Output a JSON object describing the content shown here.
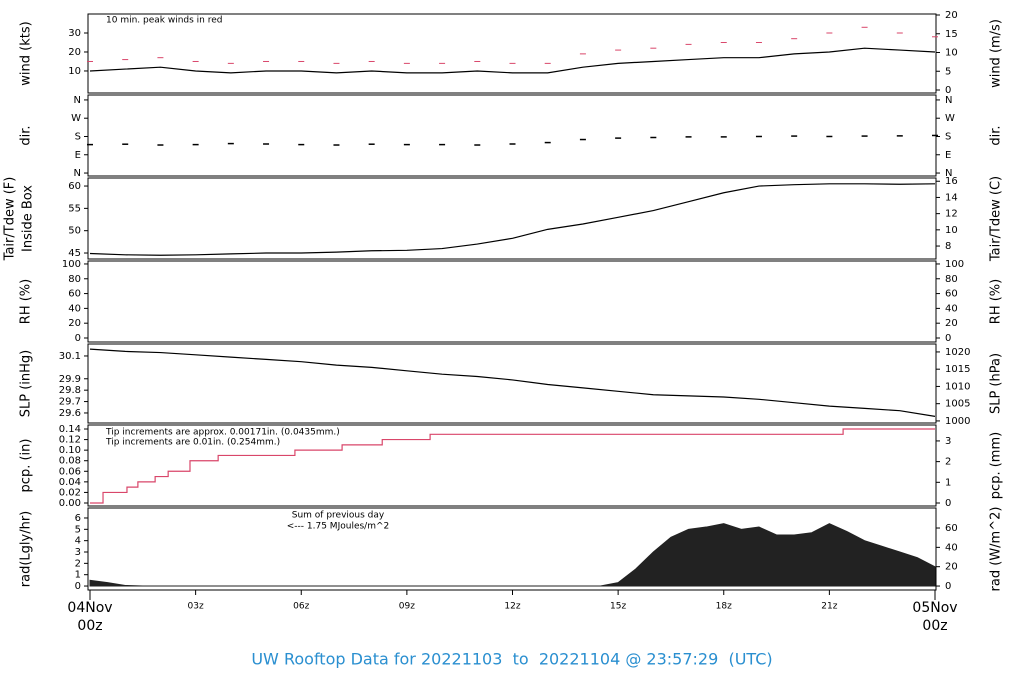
{
  "title": "UW Rooftop Data for 20221103  to  20221104 @ 23:57:29  (UTC)",
  "time_axis": {
    "xlim": [
      0,
      24
    ],
    "xticks": [
      {
        "value": 3,
        "label": "03z"
      },
      {
        "value": 6,
        "label": "06z"
      },
      {
        "value": 9,
        "label": "09z"
      },
      {
        "value": 12,
        "label": "12z"
      },
      {
        "value": 15,
        "label": "15z"
      },
      {
        "value": 18,
        "label": "18z"
      },
      {
        "value": 21,
        "label": "21z"
      }
    ],
    "edge_labels": [
      {
        "value": 0,
        "label": "04Nov",
        "sublabel": "00z"
      },
      {
        "value": 24,
        "label": "05Nov",
        "sublabel": "00z"
      }
    ],
    "edge_color": "#d9466a"
  },
  "chart_data": [
    {
      "type": "line",
      "ylabel": "wind (kts)",
      "y2label": "wind (m/s)",
      "ylim": [
        -1.6,
        40
      ],
      "yticks": [
        10,
        20,
        30
      ],
      "y2lim": [
        -0.8,
        20.27
      ],
      "y2ticks": [
        0,
        5,
        10,
        15,
        20
      ],
      "annotations": [
        {
          "text": "10 min. peak winds in red",
          "color": "#d9466a"
        }
      ],
      "x": [
        0,
        1,
        2,
        3,
        4,
        5,
        6,
        7,
        8,
        9,
        10,
        11,
        12,
        13,
        14,
        15,
        16,
        17,
        18,
        19,
        20,
        21,
        22,
        23,
        24
      ],
      "series": [
        {
          "color": "#000000",
          "style": "line",
          "values": [
            10,
            11,
            12,
            10,
            9,
            10,
            10,
            9,
            10,
            9,
            9,
            10,
            9,
            9,
            12,
            14,
            15,
            16,
            17,
            17,
            19,
            20,
            22,
            21,
            20
          ]
        },
        {
          "color": "#d9466a",
          "style": "dash",
          "values": [
            15,
            16,
            17,
            15,
            14,
            15,
            15,
            14,
            15,
            14,
            14,
            15,
            14,
            14,
            19,
            21,
            22,
            24,
            25,
            25,
            27,
            30,
            33,
            30,
            28
          ]
        }
      ]
    },
    {
      "type": "scatter",
      "ylabel": "dir.",
      "y2label": "dir.",
      "ylim": [
        -14.6,
        384.3
      ],
      "yticks": [
        {
          "value": 360,
          "label": "N"
        },
        {
          "value": 270,
          "label": "W"
        },
        {
          "value": 180,
          "label": "S"
        },
        {
          "value": 90,
          "label": "E"
        },
        {
          "value": 0,
          "label": "N"
        }
      ],
      "y2lim": [
        -14.6,
        384.3
      ],
      "y2ticks": [
        {
          "value": 360,
          "label": "N"
        },
        {
          "value": 270,
          "label": "W"
        },
        {
          "value": 180,
          "label": "S"
        },
        {
          "value": 90,
          "label": "E"
        },
        {
          "value": 0,
          "label": "N"
        }
      ],
      "x": [
        0,
        1,
        2,
        3,
        4,
        5,
        6,
        7,
        8,
        9,
        10,
        11,
        12,
        13,
        14,
        15,
        16,
        17,
        18,
        19,
        20,
        21,
        22,
        23,
        24
      ],
      "series": [
        {
          "color": "#000000",
          "values": [
            140,
            142,
            138,
            140,
            145,
            143,
            140,
            138,
            142,
            140,
            140,
            138,
            143,
            150,
            165,
            172,
            175,
            178,
            178,
            180,
            182,
            180,
            182,
            183,
            185
          ]
        }
      ]
    },
    {
      "type": "line",
      "ylabel": "Tair/Tdew (F)",
      "ylabel2": "Inside Box",
      "y2label": "Tair/Tdew (C)",
      "ylim": [
        43.66,
        61.8
      ],
      "yticks": [
        45,
        50,
        55,
        60
      ],
      "y2lim": [
        6.4,
        16.4
      ],
      "y2ticks": [
        8,
        10,
        12,
        14,
        16
      ],
      "x": [
        0,
        1,
        2,
        3,
        4,
        5,
        6,
        7,
        8,
        9,
        10,
        11,
        12,
        13,
        14,
        15,
        16,
        17,
        18,
        19,
        20,
        21,
        22,
        23,
        24
      ],
      "series": [
        {
          "color": "#000000",
          "style": "line",
          "values": [
            44.9,
            44.6,
            44.5,
            44.6,
            44.8,
            45.0,
            45.0,
            45.2,
            45.5,
            45.6,
            46.0,
            47.0,
            48.3,
            50.3,
            51.5,
            53.0,
            54.5,
            56.5,
            58.5,
            60.0,
            60.3,
            60.5,
            60.5,
            60.4,
            60.5
          ]
        }
      ]
    },
    {
      "type": "line",
      "ylabel": "RH (%)",
      "y2label": "RH (%)",
      "ylim": [
        -5.4,
        104
      ],
      "yticks": [
        0,
        20,
        40,
        60,
        80,
        100
      ],
      "y2lim": [
        -5.4,
        104
      ],
      "y2ticks": [
        0,
        20,
        40,
        60,
        80,
        100
      ],
      "x": [],
      "series": []
    },
    {
      "type": "line",
      "ylabel": "SLP (inHg)",
      "y2label": "SLP (hPa)",
      "ylim": [
        29.512,
        30.205
      ],
      "yticks": [
        29.6,
        29.7,
        29.8,
        29.9,
        30.1
      ],
      "y2lim": [
        999.4,
        1022.3
      ],
      "y2ticks": [
        1000,
        1005,
        1010,
        1015,
        1020
      ],
      "x": [
        0,
        1,
        2,
        3,
        4,
        5,
        6,
        7,
        8,
        9,
        10,
        11,
        12,
        13,
        14,
        15,
        16,
        17,
        18,
        19,
        20,
        21,
        22,
        23,
        24
      ],
      "series": [
        {
          "color": "#000000",
          "style": "line",
          "values": [
            30.16,
            30.14,
            30.13,
            30.11,
            30.09,
            30.07,
            30.05,
            30.02,
            30.0,
            29.97,
            29.94,
            29.92,
            29.89,
            29.85,
            29.82,
            29.79,
            29.76,
            29.75,
            29.74,
            29.72,
            29.69,
            29.66,
            29.64,
            29.62,
            29.57
          ]
        }
      ]
    },
    {
      "type": "step",
      "ylabel": "pcp. (in)",
      "y2label": "pcp. (mm)",
      "ylim": [
        -0.0057,
        0.1476
      ],
      "yticks": [
        {
          "value": 0,
          "label": "0.00"
        },
        0.02,
        0.04,
        0.06,
        0.08,
        {
          "value": 0.1,
          "label": "0.10"
        },
        0.12,
        0.14
      ],
      "y2lim": [
        -0.145,
        3.77
      ],
      "y2ticks": [
        0,
        1,
        2,
        3
      ],
      "annotations": [
        {
          "text": "Tip increments are approx. 0.00171in. (0.0435mm.)",
          "color": "#d9466a"
        },
        {
          "text": "Tip increments are 0.01in. (0.254mm.)",
          "color": "#2a8fd0"
        }
      ],
      "x": [
        0,
        0.37,
        1.05,
        1.36,
        1.85,
        2.22,
        2.84,
        3.64,
        5.82,
        7.16,
        8.3,
        9.66,
        21.39,
        24
      ],
      "series": [
        {
          "color": "#d9466a",
          "values": [
            0,
            0.02,
            0.03,
            0.04,
            0.05,
            0.06,
            0.08,
            0.09,
            0.1,
            0.11,
            0.12,
            0.13,
            0.14,
            0.14
          ]
        }
      ]
    },
    {
      "type": "area",
      "ylabel": "rad(Lgly/hr)",
      "y2label": "rad (W/m^2)",
      "ylim": [
        -0.35,
        6.88
      ],
      "yticks": [
        0,
        1,
        2,
        3,
        4,
        5,
        6
      ],
      "y2lim": [
        -4.1,
        80.7
      ],
      "y2ticks": [
        0,
        20,
        40,
        60
      ],
      "annotations": [
        {
          "text": "Sum of previous day",
          "color": "#9933cc"
        },
        {
          "text": "<--- 1.75 MJoules/m^2",
          "color": "#9933cc"
        }
      ],
      "x": [
        0,
        0.5,
        1,
        1.5,
        2,
        2.5,
        3,
        3.5,
        4,
        4.5,
        5,
        5.5,
        6,
        6.5,
        7,
        7.5,
        8,
        8.5,
        9,
        9.5,
        10,
        10.5,
        11,
        11.5,
        12,
        12.5,
        13,
        13.5,
        14,
        14.5,
        15,
        15.5,
        16,
        16.5,
        17,
        17.5,
        18,
        18.5,
        19,
        19.5,
        20,
        20.5,
        21,
        21.5,
        22,
        22.5,
        23,
        23.5,
        24
      ],
      "series": [
        {
          "color": "#222222",
          "values": [
            0.5,
            0.3,
            0.05,
            0,
            0,
            0,
            0,
            0,
            0,
            0,
            0,
            0,
            0,
            0,
            0,
            0,
            0,
            0,
            0,
            0,
            0,
            0,
            0,
            0,
            0,
            0,
            0,
            0,
            0,
            0,
            0.3,
            1.5,
            3.0,
            4.3,
            5.0,
            5.2,
            5.5,
            5.0,
            5.2,
            4.5,
            4.5,
            4.7,
            5.5,
            4.8,
            4.0,
            3.5,
            3.0,
            2.5,
            1.7
          ]
        }
      ]
    }
  ]
}
